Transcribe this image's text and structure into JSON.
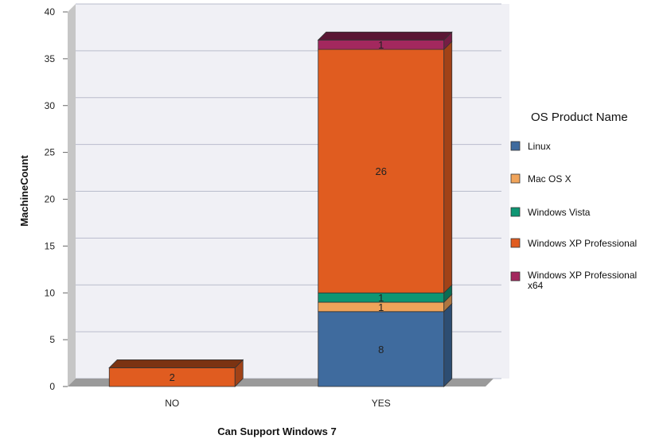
{
  "chart_data": {
    "type": "bar",
    "stacked": true,
    "style": "3d",
    "categories": [
      "NO",
      "YES"
    ],
    "series": [
      {
        "name": "Linux",
        "values": [
          0,
          8
        ],
        "color": "#3f6b9e"
      },
      {
        "name": "Mac OS X",
        "values": [
          0,
          1
        ],
        "color": "#f0a45a"
      },
      {
        "name": "Windows Vista",
        "values": [
          0,
          1
        ],
        "color": "#0e9673"
      },
      {
        "name": "Windows XP Professional",
        "values": [
          2,
          26
        ],
        "color": "#e05c20"
      },
      {
        "name": "Windows XP Professional x64",
        "values": [
          0,
          1
        ],
        "color": "#a3285e"
      }
    ],
    "xlabel": "Can Support Windows 7",
    "ylabel": "MachineCount",
    "ylim": [
      0,
      40
    ],
    "yticks": [
      0,
      5,
      10,
      15,
      20,
      25,
      30,
      35,
      40
    ],
    "grid": true,
    "legend": {
      "title": "OS Product Name",
      "position": "right"
    }
  }
}
